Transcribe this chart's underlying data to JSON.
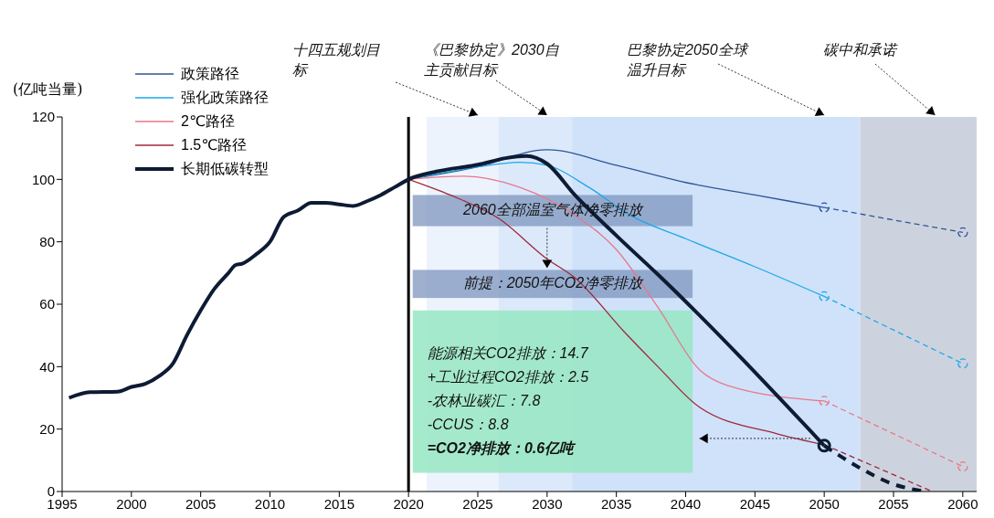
{
  "chart_data": {
    "type": "line",
    "ylabel": "(亿吨当量)",
    "legend": "top left",
    "grid": false,
    "xlim": [
      1995,
      2061
    ],
    "xticks": [
      1995,
      2000,
      2005,
      2010,
      2015,
      2020,
      2025,
      2030,
      2035,
      2040,
      2045,
      2050,
      2055,
      2060
    ],
    "ylim": [
      0,
      120
    ],
    "yticks": [
      0,
      20,
      40,
      60,
      80,
      100,
      120
    ],
    "series": [
      {
        "name": "政策路径",
        "color": "#2e5597",
        "line_style": "solid",
        "marker": "none",
        "x": [
          2020,
          2025,
          2030,
          2035,
          2040,
          2045,
          2050
        ],
        "values": [
          100,
          104,
          109.5,
          104.5,
          99,
          95,
          91
        ]
      },
      {
        "name": "强化政策路径",
        "color": "#1fa8e8",
        "line_style": "solid",
        "marker": "none",
        "x": [
          2020,
          2025,
          2028,
          2030,
          2033,
          2036,
          2040,
          2045,
          2050
        ],
        "values": [
          100,
          104,
          105.5,
          104.5,
          97.5,
          88.5,
          81,
          72,
          62.5
        ]
      },
      {
        "name": "2℃路径",
        "color": "#e8788a",
        "line_style": "solid",
        "marker": "none",
        "x": [
          2020,
          2024,
          2028,
          2032,
          2035,
          2038,
          2041,
          2043,
          2050
        ],
        "values": [
          100,
          101,
          97.5,
          88.5,
          77.5,
          59,
          39,
          34,
          29
        ]
      },
      {
        "name": "1.5℃路径",
        "color": "#a0283a",
        "line_style": "solid",
        "marker": "none",
        "x": [
          2020,
          2023,
          2026.5,
          2030,
          2032,
          2035.6,
          2038,
          2041,
          2046.6,
          2050
        ],
        "values": [
          100,
          95,
          87.5,
          74.5,
          68.5,
          51,
          40,
          27,
          18.5,
          15
        ]
      },
      {
        "name": "长期低碳转型",
        "color": "#0d1b33",
        "line_style": "solid",
        "marker": "none",
        "x": [
          1995.5,
          1997,
          1999,
          2000,
          2001,
          2002,
          2003,
          2004,
          2005,
          2006,
          2007,
          2007.5,
          2008,
          2009,
          2010,
          2011,
          2012,
          2013,
          2014,
          2015,
          2016,
          2017,
          2018,
          2019,
          2020,
          2022,
          2025,
          2027,
          2028.5,
          2030,
          2032,
          2035,
          2038,
          2050
        ],
        "values": [
          30,
          31.8,
          32,
          33.5,
          34.5,
          37,
          41,
          50,
          58,
          65,
          70,
          72.5,
          73,
          76,
          80,
          88,
          90,
          92.5,
          92.5,
          92,
          91.5,
          93,
          95,
          97.5,
          100,
          102.5,
          104.7,
          106.8,
          107.5,
          105,
          95,
          82,
          69.5,
          14.7
        ]
      },
      {
        "color": "#2e5597",
        "line_style": "dashed",
        "marker": "circle",
        "x": [
          2050,
          2060
        ],
        "values": [
          91,
          83
        ]
      },
      {
        "color": "#1fa8e8",
        "line_style": "dashed",
        "marker": "circle",
        "x": [
          2050,
          2060
        ],
        "values": [
          62.5,
          41
        ]
      },
      {
        "color": "#e8788a",
        "line_style": "dashed",
        "marker": "circle",
        "x": [
          2050,
          2060
        ],
        "values": [
          29,
          8
        ]
      },
      {
        "color": "#a0283a",
        "line_style": "dashed",
        "marker": "none",
        "x": [
          2050,
          2057.8
        ],
        "values": [
          15,
          0
        ]
      },
      {
        "color": "#0d1b33",
        "line_style": "dashed",
        "marker": "none",
        "x": [
          2050,
          2052.4,
          2054.9,
          2057.3
        ],
        "values": [
          14.7,
          8,
          2.5,
          0
        ]
      },
      {
        "type": "scatter",
        "color": "#0d1b33",
        "marker": "circle",
        "x": [
          2050
        ],
        "values": [
          14.7
        ]
      }
    ],
    "ref_lines": [
      {
        "axis": "x",
        "value": 2020,
        "color": "#000000"
      }
    ],
    "bands": [
      {
        "axis": "x",
        "from": 2021.3,
        "to": 2026.5,
        "color": "#edf3fd"
      },
      {
        "axis": "x",
        "from": 2026.5,
        "to": 2031.8,
        "color": "#dce9fb"
      },
      {
        "axis": "x",
        "from": 2031.8,
        "to": 2052.6,
        "color": "#cfe2fa"
      },
      {
        "axis": "x",
        "from": 2052.6,
        "to": 2061,
        "color": "#cdd3de"
      }
    ],
    "annotations": [
      {
        "text": "十四五规划目标",
        "x": 2025,
        "y": 120
      },
      {
        "text": "《巴黎协定》2030自主贡献目标",
        "x": 2030,
        "y": 120
      },
      {
        "text": "巴黎协定2050全球温升目标",
        "x": 2050,
        "y": 120
      },
      {
        "text": "碳中和承诺",
        "x": 2058,
        "y": 120
      },
      "2060全部温室气体净零排放",
      "前提：2050年CO2净零排放",
      "能源相关CO2排放：14.7",
      "+工业过程CO2排放：2.5",
      "-农林业碳汇：7.8",
      "-CCUS：8.8",
      "=CO2净排放：0.6亿吨"
    ]
  }
}
